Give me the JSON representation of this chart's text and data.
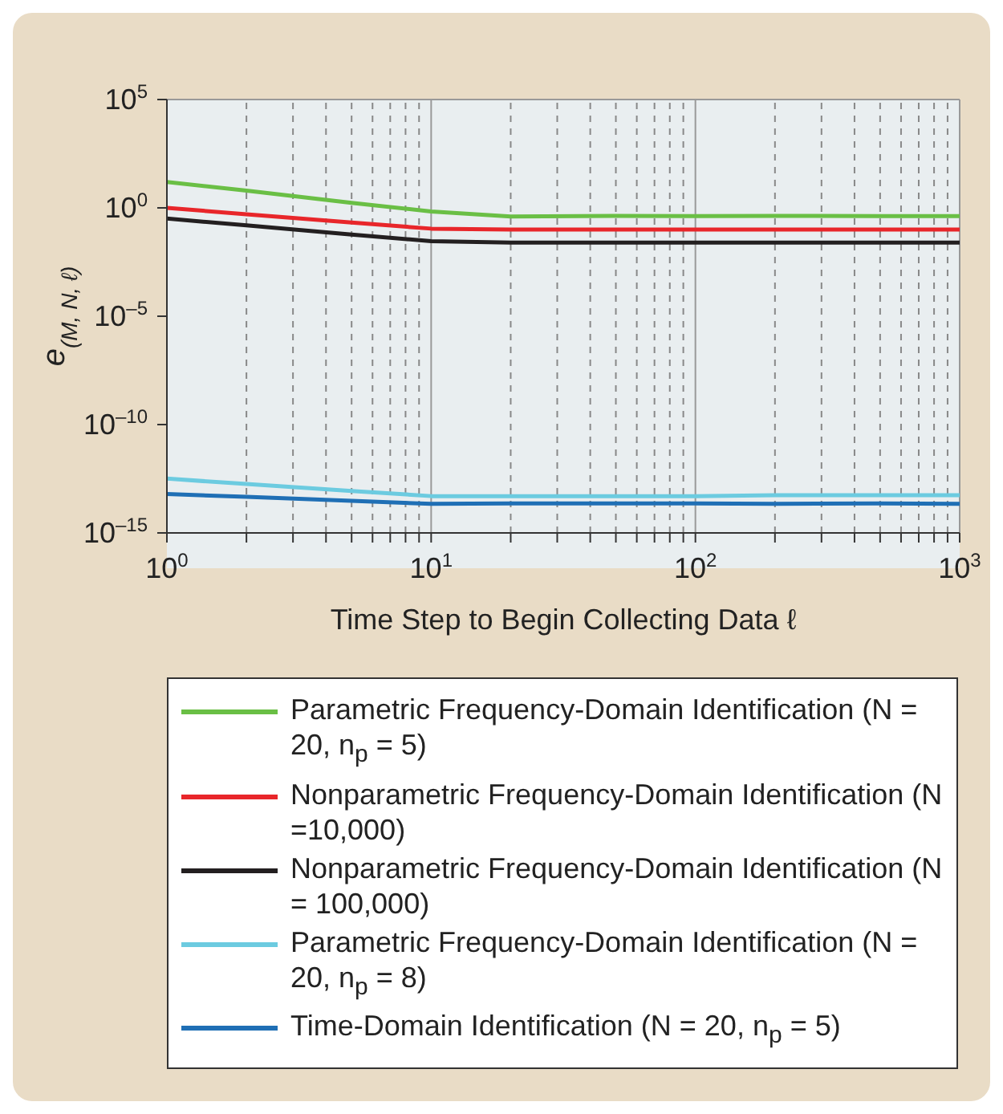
{
  "chart_data": {
    "type": "line",
    "xlabel": "Time Step to Begin Collecting Data ℓ",
    "ylabel": "e$_{(M, N, ℓ)}$",
    "log": "xy",
    "xlim": [
      1,
      1000
    ],
    "ylim": [
      1e-15,
      100000
    ],
    "xticks": [
      {
        "value": 1,
        "label": "10$^{0}$"
      },
      {
        "value": 2,
        "label": null
      },
      {
        "value": 3,
        "label": null
      },
      {
        "value": 4,
        "label": null
      },
      {
        "value": 5,
        "label": null
      },
      {
        "value": 6,
        "label": null
      },
      {
        "value": 7,
        "label": null
      },
      {
        "value": 8,
        "label": null
      },
      {
        "value": 9,
        "label": null
      },
      {
        "value": 10,
        "label": "10$^{1}$"
      },
      {
        "value": 20,
        "label": null
      },
      {
        "value": 30,
        "label": null
      },
      {
        "value": 40,
        "label": null
      },
      {
        "value": 50,
        "label": null
      },
      {
        "value": 60,
        "label": null
      },
      {
        "value": 70,
        "label": null
      },
      {
        "value": 80,
        "label": null
      },
      {
        "value": 90,
        "label": null
      },
      {
        "value": 100,
        "label": "10$^{2}$"
      },
      {
        "value": 200,
        "label": null
      },
      {
        "value": 300,
        "label": null
      },
      {
        "value": 400,
        "label": null
      },
      {
        "value": 500,
        "label": null
      },
      {
        "value": 600,
        "label": null
      },
      {
        "value": 700,
        "label": null
      },
      {
        "value": 800,
        "label": null
      },
      {
        "value": 900,
        "label": null
      },
      {
        "value": 1000,
        "label": "10$^{3}$"
      }
    ],
    "yticks": [
      {
        "value": 1e-15,
        "label": "10$^{–15}$"
      },
      {
        "value": 1e-10,
        "label": "10$^{–10}$"
      },
      {
        "value": 1e-05,
        "label": "10$^{–5}$"
      },
      {
        "value": 1,
        "label": "10$^{0}$"
      },
      {
        "value": 100000,
        "label": "10$^{5}$"
      }
    ],
    "grid": true,
    "legend": "bottom",
    "x": [
      1,
      2,
      5,
      10,
      20,
      50,
      100,
      200,
      500,
      1000
    ],
    "series": [
      {
        "name": "Parametric Frequency-Domain Identification (N = 20, n$_{p}$ = 5)",
        "color": "#6abf45",
        "values": [
          15.8,
          6.2,
          1.7,
          0.68,
          0.4,
          0.43,
          0.42,
          0.43,
          0.42,
          0.42
        ]
      },
      {
        "name": "Nonparametric Frequency-Domain Identification (N =10,000)",
        "color": "#e8262a",
        "values": [
          1,
          0.51,
          0.21,
          0.11,
          0.1,
          0.1,
          0.1,
          0.1,
          0.1,
          0.1
        ]
      },
      {
        "name": "Nonparametric Frequency-Domain Identification (N = 100,000)",
        "color": "#231f20",
        "values": [
          0.32,
          0.155,
          0.059,
          0.029,
          0.025,
          0.025,
          0.025,
          0.025,
          0.025,
          0.025
        ]
      },
      {
        "name": "Parametric Frequency-Domain Identification (N = 20, n$_{p}$ = 8)",
        "color": "#6ccbe0",
        "values": [
          3.2e-13,
          1.8e-13,
          8.7e-14,
          5e-14,
          5e-14,
          5e-14,
          5e-14,
          5.5e-14,
          5.5e-14,
          5.5e-14
        ]
      },
      {
        "name": "Time-Domain Identification (N = 20, n$_{p}$ = 5)",
        "color": "#1f6fb5",
        "values": [
          6.3e-14,
          4.6e-14,
          3e-14,
          2.2e-14,
          2.3e-14,
          2.3e-14,
          2.3e-14,
          2.2e-14,
          2.3e-14,
          2.2e-14
        ]
      }
    ]
  }
}
